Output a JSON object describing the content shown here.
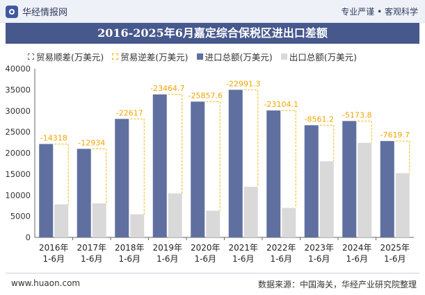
{
  "header": {
    "brand": "华经情报网",
    "tagline": "专业严谨 • 客观科学",
    "title": "2016-2025年6月嘉定综合保税区进出口差额"
  },
  "footer": {
    "url": "www.huaon.com",
    "source": "数据来源：中国海关，华经产业研究院整理"
  },
  "chart_data": {
    "type": "bar",
    "title": "2016-2025年6月嘉定综合保税区进出口差额",
    "categories": [
      {
        "year": "2016年",
        "period": "1-6月"
      },
      {
        "year": "2017年",
        "period": "1-6月"
      },
      {
        "year": "2018年",
        "period": "1-6月"
      },
      {
        "year": "2019年",
        "period": "1-6月"
      },
      {
        "year": "2020年",
        "period": "1-6月"
      },
      {
        "year": "2021年",
        "period": "1-6月"
      },
      {
        "year": "2022年",
        "period": "1-6月"
      },
      {
        "year": "2023年",
        "period": "1-6月"
      },
      {
        "year": "2024年",
        "period": "1-6月"
      },
      {
        "year": "2025年",
        "period": "1-6月"
      }
    ],
    "series": [
      {
        "name": "贸易顺差(万美元)",
        "values": [
          0,
          0,
          0,
          0,
          0,
          0,
          0,
          0,
          0,
          0
        ]
      },
      {
        "name": "贸易逆差(万美元)",
        "values": [
          -14318,
          -12934,
          -22617,
          -23464.7,
          -25857.6,
          -22991.3,
          -23104.1,
          -8561.2,
          -5173.8,
          -7619.7
        ]
      },
      {
        "name": "进口总额(万美元)",
        "values": [
          22150,
          21000,
          28100,
          33900,
          32200,
          35000,
          30100,
          26600,
          27600,
          22850
        ]
      },
      {
        "name": "出口总额(万美元)",
        "values": [
          7832,
          8066,
          5483,
          10435,
          6342,
          12009,
          6996,
          18039,
          22426,
          15230
        ]
      }
    ],
    "data_labels": [
      "-14318",
      "-12934",
      "-22617",
      "-23464.7",
      "-25857.6",
      "-22991.3",
      "-23104.1",
      "-8561.2",
      "-5173.8",
      "-7619.7"
    ],
    "ylim": [
      0,
      40000
    ],
    "yticks": [
      0,
      5000,
      10000,
      15000,
      20000,
      25000,
      30000,
      35000,
      40000
    ],
    "grid": false,
    "legend_position": "top",
    "colors": {
      "surplus": "#5b6c9e",
      "deficit": "#f5b800",
      "import": "#5f6f9f",
      "export": "#d9d9d9",
      "label": "#f0a500"
    }
  }
}
